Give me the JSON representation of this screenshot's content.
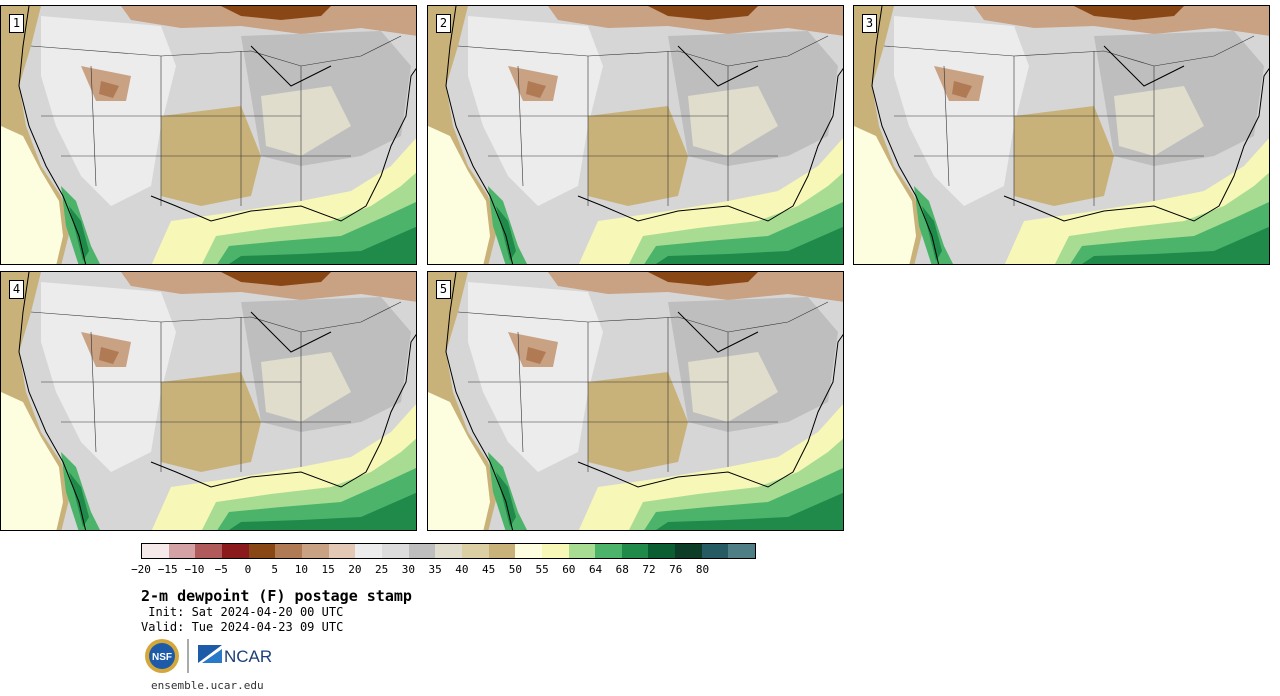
{
  "panels": [
    {
      "label": "1"
    },
    {
      "label": "2"
    },
    {
      "label": "3"
    },
    {
      "label": "4"
    },
    {
      "label": "5"
    }
  ],
  "colorbar": {
    "colors": [
      "#f5e9ea",
      "#d4a2a4",
      "#b05a5c",
      "#8b1a1c",
      "#8a4716",
      "#b07a55",
      "#c9a183",
      "#e3c8b6",
      "#ececec",
      "#dcdcdc",
      "#bebebe",
      "#e0ddcc",
      "#dccfa3",
      "#c9b27a",
      "#fdfde0",
      "#f7f7b8",
      "#a8dc92",
      "#4cb36a",
      "#1f8a4a",
      "#0b5e32",
      "#0d3d26",
      "#275b63",
      "#4f7f84"
    ],
    "ticks": [
      "−20",
      "−15",
      "−10",
      "−5",
      "0",
      "5",
      "10",
      "15",
      "20",
      "25",
      "30",
      "35",
      "40",
      "45",
      "50",
      "55",
      "60",
      "64",
      "68",
      "72",
      "76",
      "80"
    ]
  },
  "title": "2-m dewpoint (F) postage stamp",
  "init": " Init: Sat 2024-04-20 00 UTC",
  "valid": "Valid: Tue 2024-04-23 09 UTC",
  "logos": {
    "nsf": "NSF",
    "ncar": "NCAR"
  },
  "website": "ensemble.ucar.edu"
}
